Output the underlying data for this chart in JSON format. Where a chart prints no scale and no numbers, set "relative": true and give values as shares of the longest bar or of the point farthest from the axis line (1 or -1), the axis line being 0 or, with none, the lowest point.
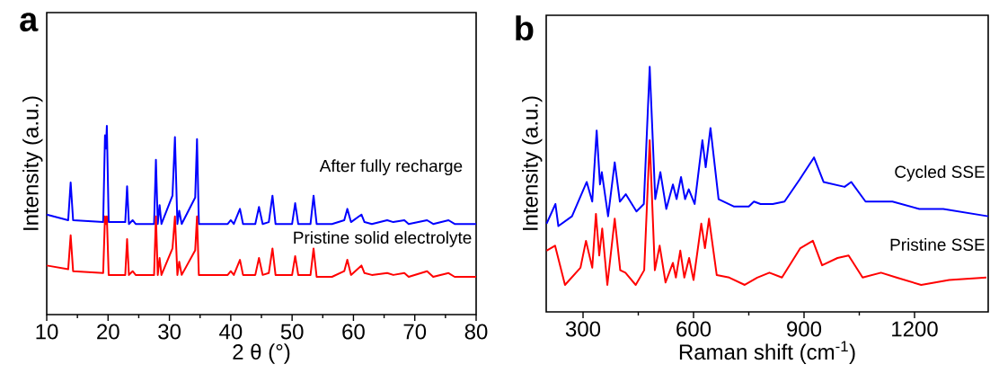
{
  "chart_data": [
    {
      "type": "line",
      "title": "a",
      "xlabel": "2 θ (°)",
      "ylabel": "Intensity (a.u.)",
      "relative": true,
      "tick_labels": "x",
      "xlim": [
        10,
        80
      ],
      "xticks": [
        10,
        20,
        30,
        40,
        50,
        60,
        70,
        80
      ],
      "x": [
        10,
        13.5,
        13.9,
        14.3,
        19.2,
        19.5,
        19.65,
        19.8,
        20.1,
        22.8,
        23.1,
        23.4,
        24.0,
        24.5,
        27.5,
        27.8,
        28.1,
        28.4,
        28.7,
        30.5,
        30.9,
        31.3,
        31.6,
        32.0,
        34.2,
        34.5,
        34.8,
        39.5,
        40.0,
        40.5,
        41.5,
        42.0,
        44.0,
        44.6,
        45.2,
        46.2,
        46.8,
        47.3,
        50.0,
        50.5,
        51.0,
        53.0,
        53.5,
        54.0,
        56.5,
        58.5,
        59.0,
        59.6,
        61.3,
        61.8,
        63.0,
        65.5,
        66.5,
        68.3,
        69.0,
        72.0,
        73.0,
        75.5,
        76.5,
        80
      ],
      "series": [
        {
          "name": "After fully recharge",
          "color": "#0000ff",
          "values": [
            0.53,
            0.5,
            0.7,
            0.5,
            0.49,
            0.95,
            0.88,
            1.0,
            0.49,
            0.49,
            0.68,
            0.48,
            0.5,
            0.48,
            0.48,
            0.82,
            0.48,
            0.58,
            0.48,
            0.63,
            0.94,
            0.48,
            0.55,
            0.48,
            0.62,
            0.93,
            0.48,
            0.48,
            0.5,
            0.48,
            0.56,
            0.48,
            0.48,
            0.57,
            0.48,
            0.49,
            0.63,
            0.48,
            0.48,
            0.59,
            0.48,
            0.48,
            0.63,
            0.48,
            0.48,
            0.5,
            0.56,
            0.49,
            0.53,
            0.49,
            0.48,
            0.5,
            0.49,
            0.5,
            0.48,
            0.5,
            0.48,
            0.5,
            0.48,
            0.48
          ]
        },
        {
          "name": "Pristine solid electrolyte",
          "color": "#ff0000",
          "values": [
            0.26,
            0.24,
            0.42,
            0.23,
            0.22,
            0.52,
            0.48,
            0.52,
            0.21,
            0.21,
            0.4,
            0.21,
            0.23,
            0.21,
            0.21,
            0.52,
            0.21,
            0.3,
            0.21,
            0.35,
            0.52,
            0.21,
            0.28,
            0.21,
            0.34,
            0.52,
            0.21,
            0.21,
            0.23,
            0.21,
            0.29,
            0.21,
            0.21,
            0.3,
            0.21,
            0.22,
            0.35,
            0.21,
            0.21,
            0.31,
            0.21,
            0.21,
            0.35,
            0.2,
            0.2,
            0.23,
            0.29,
            0.21,
            0.26,
            0.22,
            0.21,
            0.22,
            0.21,
            0.22,
            0.2,
            0.23,
            0.2,
            0.22,
            0.2,
            0.2
          ]
        }
      ]
    },
    {
      "type": "line",
      "title": "b",
      "xlabel": "Raman shift (cm$^{-1}$)",
      "ylabel": "Intensity (a.u.)",
      "relative": true,
      "tick_labels": "x",
      "xlim": [
        200,
        1400
      ],
      "xticks": [
        300,
        600,
        900,
        1200
      ],
      "series": [
        {
          "name": "Cycled SSE",
          "color": "#0000ff",
          "x": [
            201,
            225,
            233,
            270,
            310,
            325,
            337,
            346,
            351,
            368,
            386,
            400,
            416,
            445,
            465,
            481,
            496,
            510,
            526,
            544,
            554,
            566,
            577,
            587,
            603,
            624,
            633,
            646,
            668,
            709,
            750,
            764,
            782,
            815,
            847,
            888,
            927,
            953,
            1010,
            1028,
            1067,
            1140,
            1213,
            1278,
            1400
          ],
          "values": [
            0.36,
            0.44,
            0.35,
            0.39,
            0.53,
            0.45,
            0.74,
            0.52,
            0.57,
            0.39,
            0.61,
            0.45,
            0.48,
            0.41,
            0.44,
            1.0,
            0.46,
            0.57,
            0.42,
            0.52,
            0.46,
            0.55,
            0.46,
            0.5,
            0.44,
            0.7,
            0.59,
            0.75,
            0.46,
            0.43,
            0.43,
            0.45,
            0.44,
            0.44,
            0.45,
            0.54,
            0.63,
            0.53,
            0.51,
            0.53,
            0.45,
            0.45,
            0.42,
            0.42,
            0.39
          ]
        },
        {
          "name": "Pristine SSE",
          "color": "#ff0000",
          "x": [
            201,
            224,
            251,
            293,
            308,
            325,
            335,
            344,
            352,
            366,
            386,
            401,
            415,
            443,
            466,
            481,
            495,
            508,
            524,
            544,
            552,
            564,
            575,
            588,
            600,
            621,
            631,
            642,
            663,
            697,
            739,
            773,
            806,
            840,
            890,
            924,
            949,
            991,
            1021,
            1059,
            1109,
            1151,
            1218,
            1294,
            1395
          ],
          "values": [
            0.25,
            0.27,
            0.11,
            0.18,
            0.29,
            0.18,
            0.4,
            0.23,
            0.34,
            0.11,
            0.38,
            0.17,
            0.16,
            0.11,
            0.17,
            0.7,
            0.17,
            0.27,
            0.12,
            0.2,
            0.14,
            0.25,
            0.14,
            0.22,
            0.13,
            0.36,
            0.26,
            0.38,
            0.15,
            0.14,
            0.11,
            0.14,
            0.16,
            0.14,
            0.26,
            0.29,
            0.19,
            0.22,
            0.23,
            0.14,
            0.16,
            0.14,
            0.11,
            0.13,
            0.14
          ]
        }
      ]
    }
  ]
}
